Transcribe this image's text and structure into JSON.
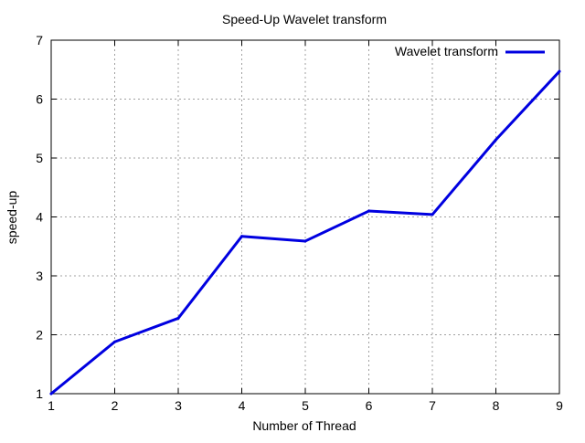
{
  "chart_data": {
    "type": "line",
    "title": "Speed-Up Wavelet transform",
    "xlabel": "Number of Thread",
    "ylabel": "speed-up",
    "xlim": [
      1,
      9
    ],
    "ylim": [
      1,
      7
    ],
    "x_ticks": [
      "1",
      "2",
      "3",
      "4",
      "5",
      "6",
      "7",
      "8",
      "9"
    ],
    "y_ticks": [
      "1",
      "2",
      "3",
      "4",
      "5",
      "6",
      "7"
    ],
    "grid": true,
    "legend_position": "top-right",
    "series": [
      {
        "name": "Wavelet transform",
        "color": "#0000e0",
        "x": [
          1,
          2,
          3,
          4,
          5,
          6,
          7,
          8,
          9
        ],
        "y": [
          1.0,
          1.88,
          2.28,
          3.67,
          3.59,
          4.1,
          4.04,
          5.31,
          6.47
        ]
      }
    ]
  }
}
